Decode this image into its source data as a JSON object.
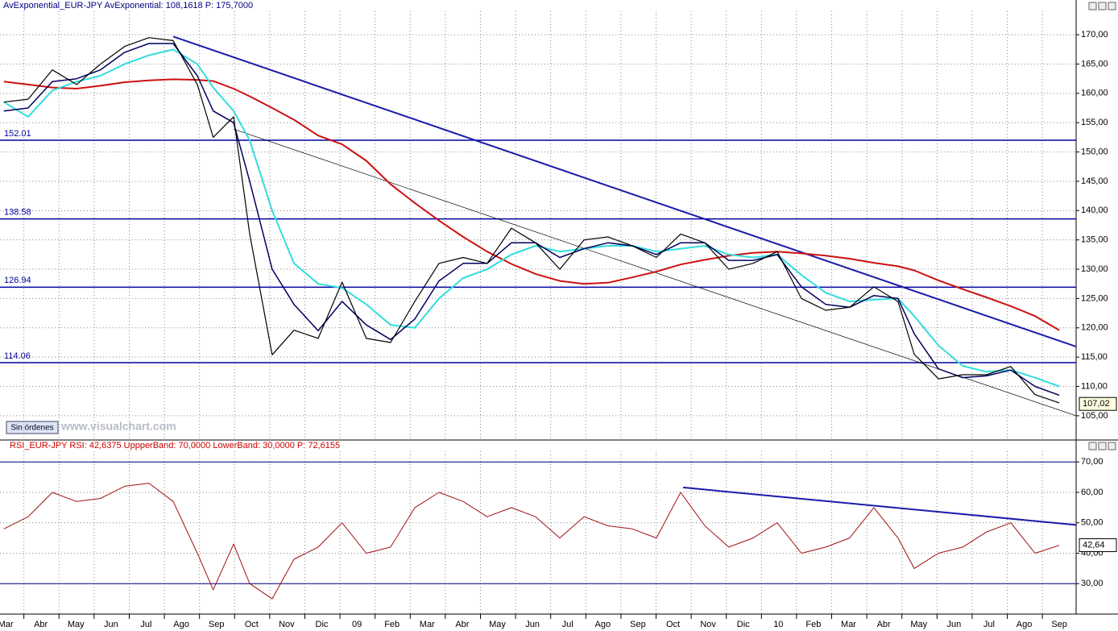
{
  "button": "Sin órdenes",
  "watermark": "www.visualchart.com",
  "chart_data": [
    {
      "type": "line",
      "title": "AvExponential_EUR-JPY  AvExponential: 108,1618  P: 175,7000",
      "xlim": [
        0.32,
        30.96
      ],
      "ylim": [
        101,
        174
      ],
      "yticks": [
        {
          "value": 105,
          "label": "105,00"
        },
        {
          "value": 110,
          "label": "110,00"
        },
        {
          "value": 115,
          "label": "115,00"
        },
        {
          "value": 120,
          "label": "120,00"
        },
        {
          "value": 125,
          "label": "125,00"
        },
        {
          "value": 130,
          "label": "130,00"
        },
        {
          "value": 135,
          "label": "135,00"
        },
        {
          "value": 140,
          "label": "140,00"
        },
        {
          "value": 145,
          "label": "145,00"
        },
        {
          "value": 150,
          "label": "150,00"
        },
        {
          "value": 155,
          "label": "155,00"
        },
        {
          "value": 160,
          "label": "160,00"
        },
        {
          "value": 165,
          "label": "165,00"
        },
        {
          "value": 170,
          "label": "170,00"
        }
      ],
      "xticks": [
        0,
        1,
        2,
        3,
        4,
        5,
        6,
        7,
        8,
        9,
        10,
        11,
        12,
        13,
        14,
        15,
        16,
        17,
        18,
        19,
        20,
        21,
        22,
        23,
        24,
        25,
        26,
        27,
        28,
        29,
        30
      ],
      "grid": true,
      "x": [
        0.43,
        1.12,
        1.81,
        2.5,
        3.18,
        3.87,
        4.56,
        5.25,
        5.94,
        6.39,
        6.97,
        7.43,
        8.07,
        8.69,
        9.38,
        10.06,
        10.75,
        11.44,
        12.13,
        12.82,
        13.51,
        14.19,
        14.88,
        15.57,
        16.26,
        16.95,
        17.63,
        18.32,
        19.01,
        19.7,
        20.39,
        21.07,
        21.76,
        22.45,
        23.14,
        23.83,
        24.51,
        25.2,
        25.89,
        26.35,
        27.04,
        27.73,
        28.41,
        29.1,
        29.79,
        30.48
      ],
      "series": [
        {
          "color": "#cc1111",
          "width": 2,
          "values": [
            162,
            161.5,
            161,
            160.8,
            161.3,
            161.9,
            162.2,
            162.4,
            162.3,
            162.1,
            160.8,
            159.5,
            157.5,
            155.5,
            152.8,
            151.3,
            148.5,
            144.5,
            141.3,
            138.3,
            135.5,
            133,
            130.9,
            129.2,
            128,
            127.5,
            127.7,
            128.6,
            129.6,
            130.8,
            131.6,
            132.3,
            132.8,
            133,
            132.7,
            132.3,
            131.8,
            131.1,
            130.5,
            129.8,
            128.1,
            126.6,
            125.2,
            123.7,
            122,
            119.6
          ]
        },
        {
          "color": "#33dddd",
          "width": 2,
          "values": [
            158.5,
            156,
            160.5,
            162,
            163,
            165,
            166.5,
            167.5,
            165,
            161,
            157,
            152,
            140,
            131,
            127.5,
            126.8,
            124,
            120.5,
            120,
            125,
            128.5,
            130,
            132.5,
            134,
            133,
            133.5,
            134,
            134,
            133,
            133.5,
            134,
            132.5,
            132,
            132.5,
            129,
            126,
            124.5,
            124.8,
            125,
            122,
            117,
            113.5,
            112.5,
            112.8,
            111.5,
            110
          ]
        },
        {
          "color": "#000060",
          "width": 1.5,
          "values": [
            157,
            157.5,
            162,
            162.5,
            164,
            167,
            168.5,
            168.5,
            163,
            157,
            155,
            145,
            130,
            124,
            119.5,
            124.5,
            120.5,
            118,
            121.5,
            128,
            131,
            131,
            134.5,
            134.5,
            132,
            133.5,
            134.5,
            134,
            132.5,
            134.5,
            134.5,
            131.5,
            131.5,
            132.5,
            127,
            124,
            123.5,
            125.5,
            125,
            119,
            113,
            111.5,
            111.8,
            112.8,
            110,
            108.5
          ]
        },
        {
          "color": "#000000",
          "width": 1.2,
          "values": [
            158.5,
            159,
            164,
            161.5,
            165,
            168,
            169.5,
            169,
            161.5,
            152.5,
            156,
            136,
            115.4,
            119.6,
            118.2,
            127.8,
            118.2,
            117.5,
            124.5,
            131,
            132,
            131,
            137,
            134.5,
            130,
            135,
            135.5,
            134,
            132,
            136,
            134.5,
            130,
            131,
            133,
            125,
            123,
            123.5,
            127,
            124.5,
            115.5,
            111.3,
            112,
            112,
            113.4,
            108.6,
            107.2
          ]
        }
      ],
      "hlines": [
        {
          "value": 152.01,
          "label": "152.01"
        },
        {
          "value": 138.58,
          "label": "138.58"
        },
        {
          "value": 126.94,
          "label": "126.94"
        },
        {
          "value": 114.06,
          "label": "114.06"
        }
      ],
      "hline_color": "#0000a0",
      "trendlines": [
        {
          "color": "#1a1aaa",
          "width": 2,
          "x": [
            5.25,
            30.96
          ],
          "values": [
            169.7,
            116.8
          ]
        },
        {
          "color": "#000000",
          "width": 0.7,
          "x": [
            6.97,
            30.96
          ],
          "values": [
            153.9,
            105
          ]
        }
      ],
      "last": {
        "value": 107.02,
        "label": "107,02"
      }
    },
    {
      "type": "line",
      "title": "RSI_EUR-JPY  RSI: 42,6375  UppperBand: 70,0000  LowerBand: 30,0000  P: 72,6155",
      "xlim": [
        0.32,
        30.96
      ],
      "ylim": [
        20,
        73.5
      ],
      "yticks": [
        {
          "value": 30,
          "label": "30,00"
        },
        {
          "value": 40,
          "label": "40,00"
        },
        {
          "value": 50,
          "label": "50,00"
        },
        {
          "value": 60,
          "label": "60,00"
        },
        {
          "value": 70,
          "label": "70,00"
        }
      ],
      "xticks": [
        {
          "value": 0,
          "label": "Mar"
        },
        {
          "value": 1,
          "label": "Abr"
        },
        {
          "value": 2,
          "label": "May"
        },
        {
          "value": 3,
          "label": "Jun"
        },
        {
          "value": 4,
          "label": "Jul"
        },
        {
          "value": 5,
          "label": "Ago"
        },
        {
          "value": 6,
          "label": "Sep"
        },
        {
          "value": 7,
          "label": "Oct"
        },
        {
          "value": 8,
          "label": "Nov"
        },
        {
          "value": 9,
          "label": "Dic"
        },
        {
          "value": 10,
          "label": "09"
        },
        {
          "value": 11,
          "label": "Feb"
        },
        {
          "value": 12,
          "label": "Mar"
        },
        {
          "value": 13,
          "label": "Abr"
        },
        {
          "value": 14,
          "label": "May"
        },
        {
          "value": 15,
          "label": "Jun"
        },
        {
          "value": 16,
          "label": "Jul"
        },
        {
          "value": 17,
          "label": "Ago"
        },
        {
          "value": 18,
          "label": "Sep"
        },
        {
          "value": 19,
          "label": "Oct"
        },
        {
          "value": 20,
          "label": "Nov"
        },
        {
          "value": 21,
          "label": "Dic"
        },
        {
          "value": 22,
          "label": "10"
        },
        {
          "value": 23,
          "label": "Feb"
        },
        {
          "value": 24,
          "label": "Mar"
        },
        {
          "value": 25,
          "label": "Abr"
        },
        {
          "value": 26,
          "label": "May"
        },
        {
          "value": 27,
          "label": "Jun"
        },
        {
          "value": 28,
          "label": "Jul"
        },
        {
          "value": 29,
          "label": "Ago"
        },
        {
          "value": 30,
          "label": "Sep"
        }
      ],
      "grid": true,
      "x": [
        0.43,
        1.12,
        1.81,
        2.5,
        3.18,
        3.87,
        4.56,
        5.25,
        5.94,
        6.39,
        6.97,
        7.43,
        8.07,
        8.69,
        9.38,
        10.06,
        10.75,
        11.44,
        12.13,
        12.82,
        13.51,
        14.19,
        14.88,
        15.57,
        16.26,
        16.95,
        17.63,
        18.32,
        19.01,
        19.7,
        20.39,
        21.07,
        21.76,
        22.45,
        23.14,
        23.83,
        24.51,
        25.2,
        25.89,
        26.35,
        27.04,
        27.73,
        28.41,
        29.1,
        29.79,
        30.48
      ],
      "series": [
        {
          "color": "#a01010",
          "width": 1,
          "values": [
            48,
            52,
            60,
            57,
            58,
            62,
            63,
            57,
            40,
            28,
            43,
            30,
            25,
            38,
            42,
            50,
            40,
            42,
            55,
            60,
            57,
            52,
            55,
            52,
            45,
            52,
            49,
            48,
            45,
            60,
            49,
            42,
            45,
            50,
            40,
            42,
            45,
            55,
            45,
            35,
            40,
            42,
            47,
            50,
            40,
            42.6
          ]
        }
      ],
      "hlines": [
        {
          "value": 70
        },
        {
          "value": 30
        }
      ],
      "hline_color": "#000080",
      "trendlines": [
        {
          "color": "#1a1aaa",
          "width": 2,
          "x": [
            19.77,
            30.96
          ],
          "values": [
            61.6,
            49.3
          ]
        }
      ],
      "last": {
        "value": 42.64,
        "label": "42,64"
      }
    }
  ]
}
